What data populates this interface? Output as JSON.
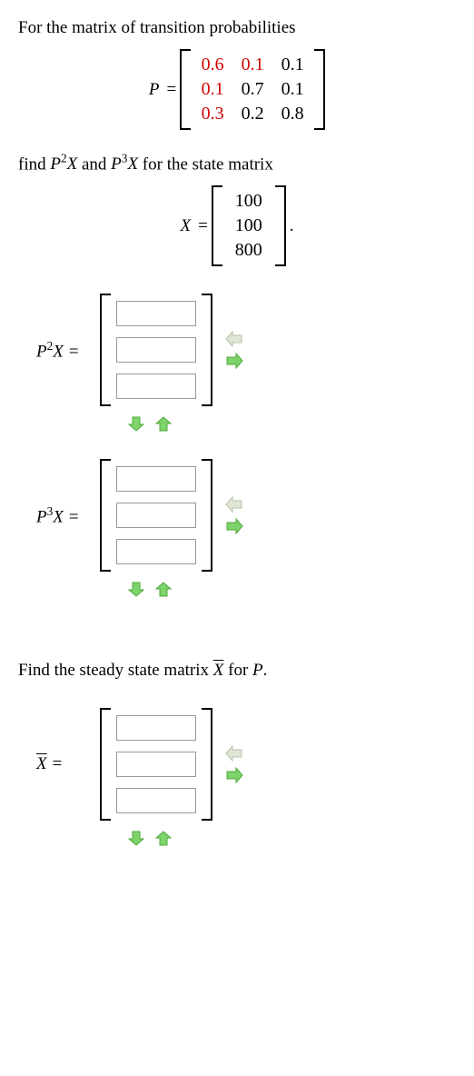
{
  "intro": "For the matrix of transition probabilities",
  "P_label": "P",
  "P": {
    "rows": [
      [
        {
          "v": "0.6",
          "red": true
        },
        {
          "v": "0.1",
          "red": true
        },
        {
          "v": "0.1",
          "red": false
        }
      ],
      [
        {
          "v": "0.1",
          "red": true
        },
        {
          "v": "0.7",
          "red": false
        },
        {
          "v": "0.1",
          "red": false
        }
      ],
      [
        {
          "v": "0.3",
          "red": true
        },
        {
          "v": "0.2",
          "red": false
        },
        {
          "v": "0.8",
          "red": false
        }
      ]
    ]
  },
  "find_prefix": "find ",
  "find_mid": " and ",
  "find_suffix": " for the state matrix",
  "p2x_html": "P<span class=\"sup\">2</span>X",
  "p3x_html": "P<span class=\"sup\">3</span>X",
  "X_label": "X",
  "X": {
    "rows": [
      [
        "100"
      ],
      [
        "100"
      ],
      [
        "800"
      ]
    ]
  },
  "X_trailing": ".",
  "answers": [
    {
      "lhs_html": "P<span class=\"sup\">2</span>X =",
      "rows": 3
    },
    {
      "lhs_html": "P<span class=\"sup\">3</span>X =",
      "rows": 3
    }
  ],
  "steady_prefix": "Find the steady state matrix ",
  "steady_xbar_html": "<span class=\"overline ital\">X</span>",
  "steady_suffix": " for ",
  "steady_P": "P",
  "steady_end": ".",
  "xbar_answer": {
    "lhs_html": "<span class=\"overline ital\">X</span> =",
    "rows": 3
  },
  "arrow_colors": {
    "faded_fill": "#dfe6d6",
    "faded_stroke": "#b7c3a8",
    "active_fill": "#7ed36a",
    "active_stroke": "#4fa83c"
  }
}
